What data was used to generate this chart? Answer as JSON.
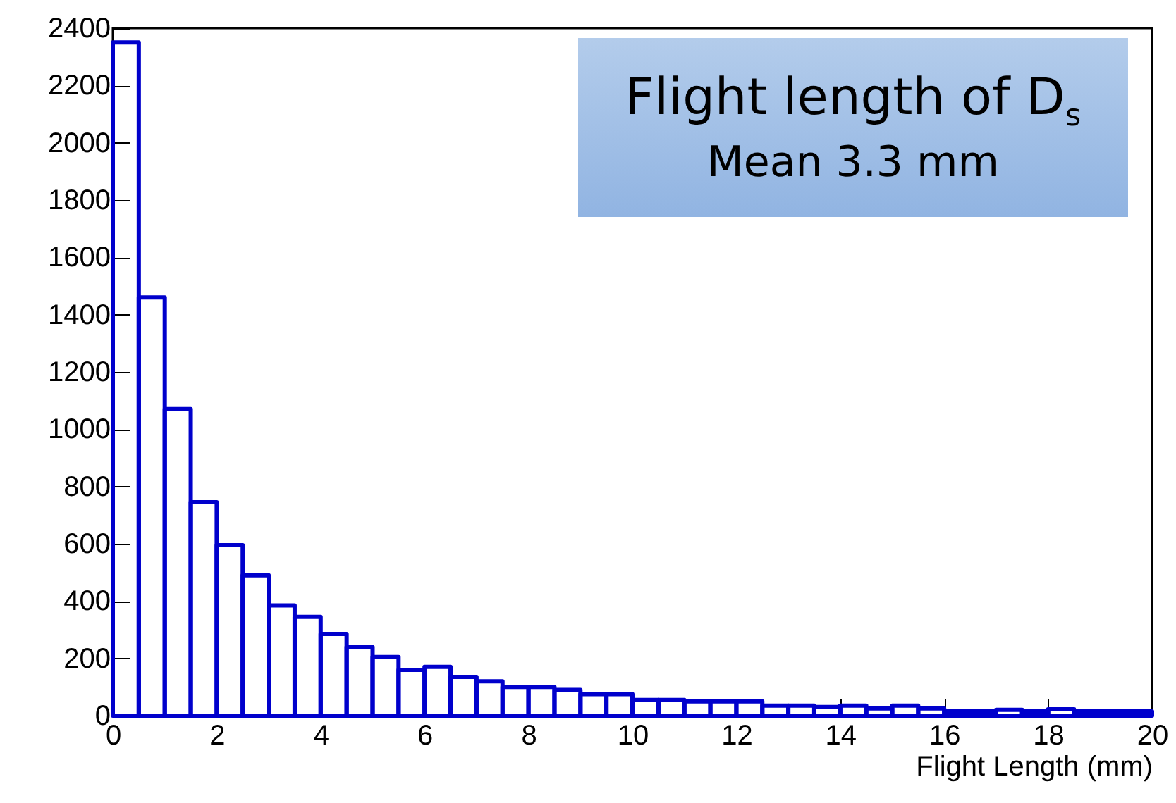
{
  "chart_data": {
    "type": "histogram",
    "xlabel": "Flight Length (mm)",
    "annotations": [
      "Flight length of D$_{s}$",
      "Mean 3.3 mm"
    ],
    "bins": [
      0,
      0.5,
      1,
      1.5,
      2,
      2.5,
      3,
      3.5,
      4,
      4.5,
      5,
      5.5,
      6,
      6.5,
      7,
      7.5,
      8,
      8.5,
      9,
      9.5,
      10,
      10.5,
      11,
      11.5,
      12,
      12.5,
      13,
      13.5,
      14,
      14.5,
      15,
      15.5,
      16,
      16.5,
      17,
      17.5,
      18,
      18.5,
      19,
      19.5,
      20
    ],
    "values": [
      2350,
      1460,
      1070,
      745,
      595,
      490,
      385,
      345,
      285,
      240,
      205,
      160,
      170,
      135,
      120,
      100,
      100,
      90,
      75,
      75,
      55,
      55,
      50,
      50,
      50,
      35,
      35,
      30,
      35,
      25,
      35,
      25,
      15,
      15,
      20,
      15,
      22,
      15,
      15,
      15
    ],
    "color": "#0000cc",
    "xlim": [
      0,
      20
    ],
    "xticks": [
      0,
      2,
      4,
      6,
      8,
      10,
      12,
      14,
      16,
      18,
      20
    ],
    "ylim": [
      0,
      2400
    ],
    "yticks": [
      0,
      200,
      400,
      600,
      800,
      1000,
      1200,
      1400,
      1600,
      1800,
      2000,
      2200,
      2400
    ],
    "grid": false
  }
}
